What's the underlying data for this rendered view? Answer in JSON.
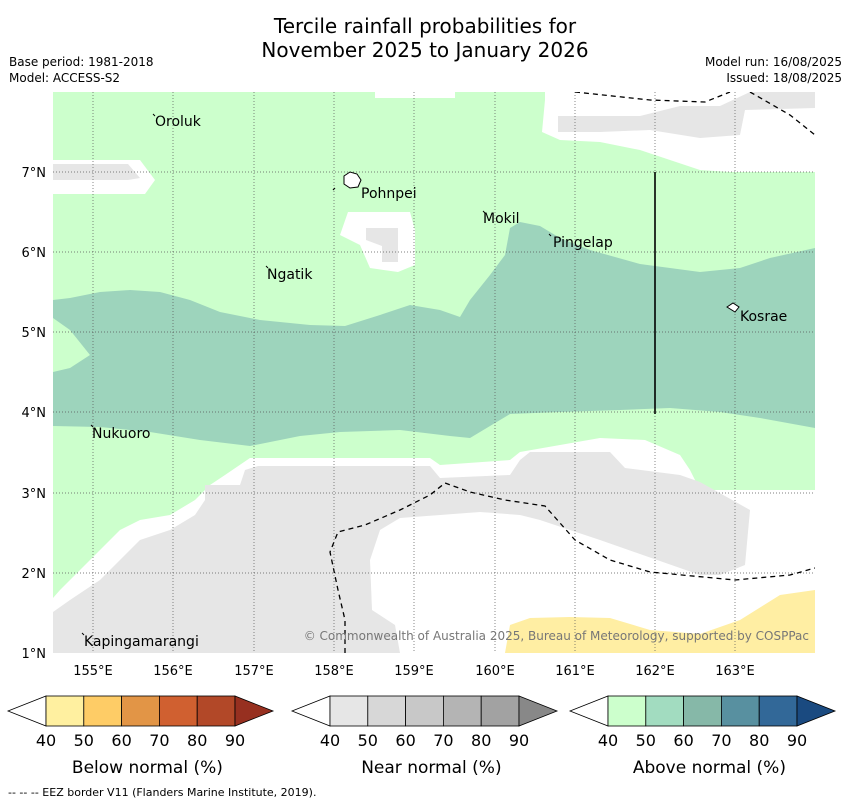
{
  "title": {
    "line1": "Tercile rainfall probabilities for",
    "line2": "November 2025 to January 2026"
  },
  "meta": {
    "base_period": "Base period: 1981-2018",
    "model": "Model: ACCESS-S2",
    "model_run": "Model run: 16/08/2025",
    "issued": "Issued: 18/08/2025"
  },
  "map": {
    "lon_range": [
      154.5,
      164.0
    ],
    "lat_range": [
      1.0,
      8.0
    ],
    "x_ticks": [
      "155°E",
      "156°E",
      "157°E",
      "158°E",
      "159°E",
      "160°E",
      "161°E",
      "162°E",
      "163°E"
    ],
    "y_ticks": [
      "1°N",
      "2°N",
      "3°N",
      "4°N",
      "5°N",
      "6°N",
      "7°N"
    ],
    "places": [
      {
        "name": "Oroluk"
      },
      {
        "name": "Pohnpei"
      },
      {
        "name": "Mokil"
      },
      {
        "name": "Pingelap"
      },
      {
        "name": "Ngatik"
      },
      {
        "name": "Kosrae"
      },
      {
        "name": "Nukuoro"
      },
      {
        "name": "Kapingamarangi"
      }
    ],
    "copyright": "© Commonwealth of Australia 2025, Bureau of Meteorology, supported by COSPPac",
    "colors": {
      "above_40_50": "#ccffcc",
      "above_50_60": "#9dd4bc",
      "near_40_50": "#e6e6e6",
      "below_40_50": "#ffeea3"
    }
  },
  "legends": [
    {
      "label": "Below normal (%)",
      "ticks": [
        "40",
        "50",
        "60",
        "70",
        "80",
        "90"
      ],
      "colors": [
        "#fff0a0",
        "#fecc66",
        "#e29546",
        "#d06030",
        "#b24828",
        "#973020"
      ]
    },
    {
      "label": "Near normal (%)",
      "ticks": [
        "40",
        "50",
        "60",
        "70",
        "80",
        "90"
      ],
      "colors": [
        "#e6e6e6",
        "#d7d7d7",
        "#c8c8c8",
        "#b4b4b4",
        "#a2a2a2",
        "#888888"
      ]
    },
    {
      "label": "Above normal (%)",
      "ticks": [
        "40",
        "50",
        "60",
        "70",
        "80",
        "90"
      ],
      "colors": [
        "#ccffcc",
        "#a2dcc0",
        "#86b8a8",
        "#5890a0",
        "#326898",
        "#1a4a80"
      ]
    }
  ],
  "footer": "--  --  -- EEZ border V11 (Flanders Marine Institute, 2019)."
}
